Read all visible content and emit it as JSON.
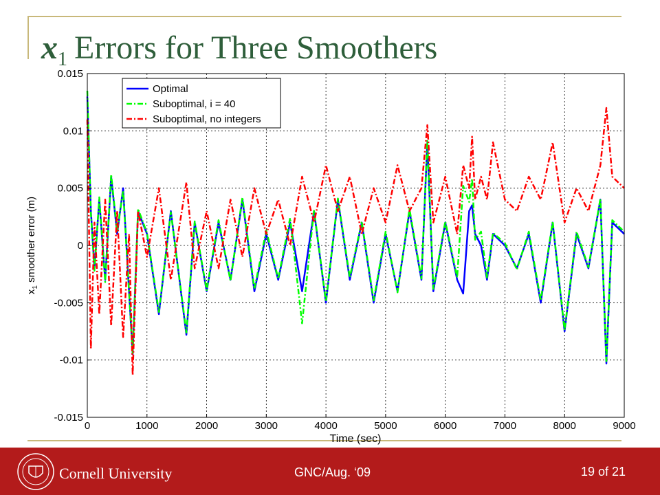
{
  "slide": {
    "title_var": "x",
    "title_sub": "1",
    "title_rest": "Errors for Three Smoothers",
    "institution": "Cornell University",
    "conference": "GNC/Aug. ‘09",
    "page": "19 of 21"
  },
  "colors": {
    "title": "#2e5e3a",
    "footer": "#b31b1b",
    "accent_line": "#c8b87a"
  },
  "chart_data": {
    "type": "line",
    "xlabel": "Time (sec)",
    "ylabel": "x_1 smoother error (m)",
    "xlim": [
      0,
      9000
    ],
    "ylim": [
      -0.015,
      0.015
    ],
    "xticks": [
      0,
      1000,
      2000,
      3000,
      4000,
      5000,
      6000,
      7000,
      8000,
      9000
    ],
    "yticks": [
      -0.015,
      -0.01,
      -0.005,
      0,
      0.005,
      0.01,
      0.015
    ],
    "ytick_labels": [
      "-0.015",
      "-0.01",
      "-0.005",
      "0",
      "0.005",
      "0.01",
      "0.015"
    ],
    "grid": true,
    "legend_position": "top-left",
    "series": [
      {
        "name": "Optimal",
        "color": "#0000ff",
        "style": "solid",
        "x": [
          0,
          60,
          120,
          200,
          300,
          400,
          500,
          600,
          700,
          760,
          850,
          1000,
          1200,
          1400,
          1660,
          1800,
          2000,
          2200,
          2400,
          2600,
          2800,
          3000,
          3200,
          3400,
          3600,
          3800,
          4000,
          4200,
          4400,
          4600,
          4800,
          5000,
          5200,
          5400,
          5600,
          5700,
          5800,
          6000,
          6200,
          6300,
          6400,
          6450,
          6500,
          6600,
          6700,
          6800,
          7000,
          7200,
          7400,
          7600,
          7800,
          8000,
          8200,
          8400,
          8600,
          8700,
          8800,
          9000
        ],
        "y": [
          0.013,
          0.003,
          -0.002,
          0.004,
          -0.003,
          0.006,
          0.001,
          0.005,
          -0.004,
          -0.0095,
          0.003,
          0.001,
          -0.006,
          0.003,
          -0.0078,
          0.002,
          -0.004,
          0.002,
          -0.003,
          0.004,
          -0.004,
          0.001,
          -0.003,
          0.002,
          -0.004,
          0.003,
          -0.005,
          0.004,
          -0.003,
          0.002,
          -0.005,
          0.001,
          -0.004,
          0.003,
          -0.003,
          0.009,
          -0.004,
          0.002,
          -0.003,
          -0.0042,
          0.003,
          0.0035,
          0.001,
          0.0,
          -0.003,
          0.001,
          0.0,
          -0.002,
          0.001,
          -0.005,
          0.002,
          -0.0075,
          0.001,
          -0.002,
          0.004,
          -0.0103,
          0.002,
          0.001
        ]
      },
      {
        "name": "Suboptimal, i = 40",
        "color": "#00ff00",
        "style": "dashdot",
        "x": [
          0,
          60,
          120,
          200,
          300,
          400,
          500,
          600,
          700,
          760,
          850,
          1000,
          1200,
          1400,
          1660,
          1800,
          2000,
          2200,
          2400,
          2600,
          2800,
          3000,
          3200,
          3400,
          3600,
          3800,
          4000,
          4200,
          4400,
          4600,
          4800,
          5000,
          5200,
          5400,
          5600,
          5700,
          5800,
          6000,
          6200,
          6300,
          6400,
          6450,
          6500,
          6600,
          6700,
          6800,
          7000,
          7200,
          7400,
          7600,
          7800,
          8000,
          8200,
          8400,
          8600,
          8700,
          8800,
          9000
        ],
        "y": [
          0.0135,
          0.0028,
          -0.0022,
          0.0042,
          -0.0032,
          0.0062,
          0.0012,
          0.0048,
          -0.0041,
          -0.0094,
          0.0032,
          0.0011,
          -0.0058,
          0.0029,
          -0.0076,
          0.0021,
          -0.0039,
          0.0022,
          -0.0031,
          0.0042,
          -0.0038,
          0.0013,
          -0.0029,
          0.0024,
          -0.0068,
          0.0031,
          -0.0049,
          0.0041,
          -0.0028,
          0.0021,
          -0.0048,
          0.0012,
          -0.0041,
          0.0032,
          -0.0029,
          0.0092,
          -0.0038,
          0.0021,
          -0.0028,
          0.0052,
          0.0038,
          0.0058,
          0.0005,
          0.0012,
          -0.0028,
          0.0011,
          0.0002,
          -0.0021,
          0.0012,
          -0.0048,
          0.0021,
          -0.0074,
          0.0012,
          -0.0019,
          0.0041,
          -0.0101,
          0.0022,
          0.0012
        ]
      },
      {
        "name": "Suboptimal, no integers",
        "color": "#ff0000",
        "style": "dashdot",
        "x": [
          0,
          60,
          120,
          200,
          300,
          400,
          500,
          600,
          700,
          760,
          850,
          1000,
          1200,
          1400,
          1660,
          1800,
          2000,
          2200,
          2400,
          2600,
          2800,
          3000,
          3200,
          3400,
          3600,
          3800,
          4000,
          4200,
          4400,
          4600,
          4800,
          5000,
          5200,
          5400,
          5600,
          5700,
          5800,
          6000,
          6200,
          6300,
          6400,
          6450,
          6500,
          6600,
          6700,
          6800,
          7000,
          7200,
          7400,
          7600,
          7800,
          8000,
          8200,
          8400,
          8600,
          8700,
          8800,
          9000
        ],
        "y": [
          0.011,
          -0.009,
          0.002,
          -0.006,
          0.004,
          -0.007,
          0.003,
          -0.008,
          0.001,
          -0.0113,
          0.003,
          -0.001,
          0.005,
          -0.003,
          0.0055,
          -0.002,
          0.003,
          -0.002,
          0.004,
          -0.001,
          0.005,
          0.001,
          0.004,
          0.0,
          0.006,
          0.002,
          0.007,
          0.003,
          0.006,
          0.001,
          0.005,
          0.002,
          0.007,
          0.003,
          0.005,
          0.0105,
          0.002,
          0.006,
          0.001,
          0.007,
          0.005,
          0.0095,
          0.004,
          0.006,
          0.004,
          0.009,
          0.004,
          0.003,
          0.006,
          0.004,
          0.009,
          0.002,
          0.005,
          0.003,
          0.007,
          0.012,
          0.006,
          0.005
        ]
      }
    ]
  }
}
